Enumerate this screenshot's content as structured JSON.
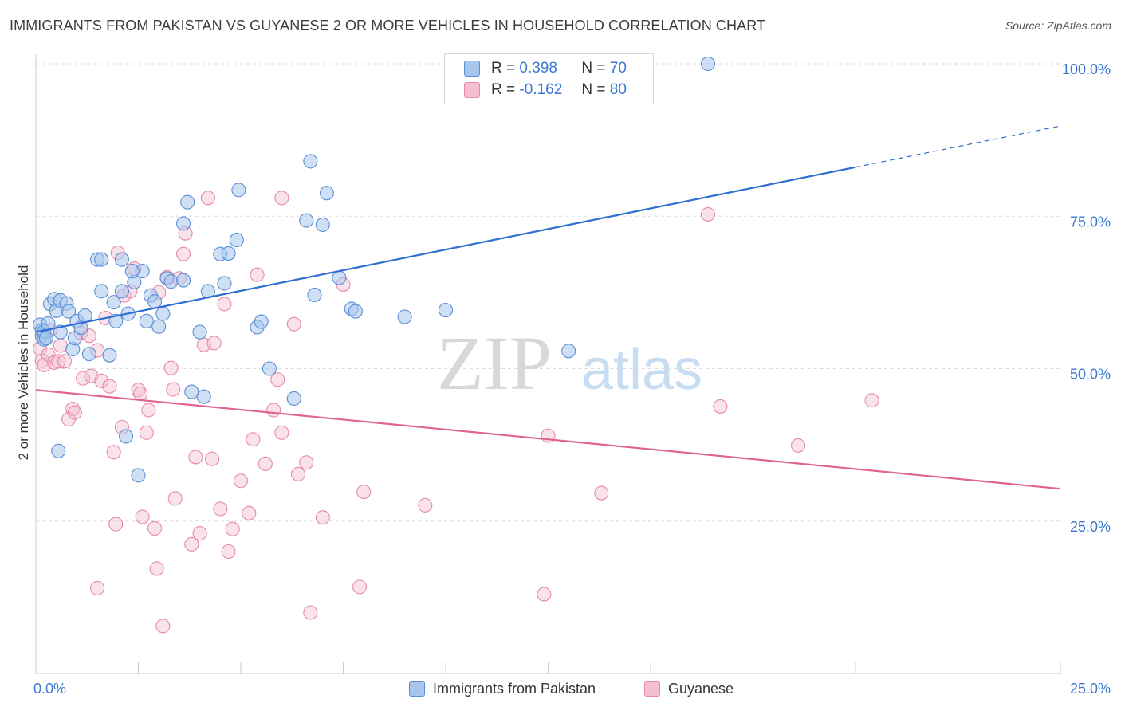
{
  "title": "IMMIGRANTS FROM PAKISTAN VS GUYANESE 2 OR MORE VEHICLES IN HOUSEHOLD CORRELATION CHART",
  "source": "Source: ZipAtlas.com",
  "watermark": {
    "zip": "ZIP",
    "atlas": "atlas"
  },
  "colors": {
    "blue_fill": "#a8c6ec",
    "blue_stroke": "#5b8fd6",
    "blue_line": "#2e6fd0",
    "pink_fill": "#f5bfd0",
    "pink_stroke": "#e58aaa",
    "pink_line": "#e0648f",
    "axis_text": "#3b78d4",
    "grid": "#dddddd"
  },
  "legend": {
    "rows": [
      {
        "r_label": "R =",
        "r_value": "0.398",
        "n_label": "N =",
        "n_value": "70"
      },
      {
        "r_label": "R =",
        "r_value": "-0.162",
        "n_label": "N =",
        "n_value": "80"
      }
    ]
  },
  "bottom_legend": [
    "Immigrants from Pakistan",
    "Guyanese"
  ],
  "chart_data": {
    "type": "scatter",
    "title": "IMMIGRANTS FROM PAKISTAN VS GUYANESE 2 OR MORE VEHICLES IN HOUSEHOLD CORRELATION CHART",
    "xlabel": "",
    "ylabel": "2 or more Vehicles in Household",
    "xlim": [
      0,
      25
    ],
    "ylim": [
      0,
      100
    ],
    "x_tick_labels": [
      {
        "value": 0,
        "label": "0.0%"
      },
      {
        "value": 25,
        "label": "25.0%"
      }
    ],
    "y_tick_labels": [
      {
        "value": 25,
        "label": "25.0%"
      },
      {
        "value": 50,
        "label": "50.0%"
      },
      {
        "value": 75,
        "label": "75.0%"
      },
      {
        "value": 100,
        "label": "100.0%"
      }
    ],
    "grid": "horizontal dashed",
    "legend_position": "top-center",
    "series": [
      {
        "name": "Immigrants from Pakistan",
        "color": "#5b8fd6",
        "trend": {
          "x0": 0,
          "y0": 56.0,
          "x1": 25,
          "y1": 89.8,
          "solid_until_x": 20
        },
        "points": [
          [
            0.1,
            57.2
          ],
          [
            0.15,
            56.3
          ],
          [
            0.15,
            55.4
          ],
          [
            0.2,
            54.8
          ],
          [
            0.2,
            56.1
          ],
          [
            0.25,
            55.0
          ],
          [
            0.3,
            57.4
          ],
          [
            0.35,
            60.6
          ],
          [
            0.45,
            61.4
          ],
          [
            0.5,
            59.5
          ],
          [
            0.6,
            61.2
          ],
          [
            0.6,
            56.0
          ],
          [
            0.75,
            60.7
          ],
          [
            0.8,
            59.4
          ],
          [
            0.9,
            53.2
          ],
          [
            0.95,
            55.0
          ],
          [
            1.0,
            57.8
          ],
          [
            1.1,
            56.7
          ],
          [
            1.2,
            58.7
          ],
          [
            1.3,
            52.4
          ],
          [
            1.5,
            67.9
          ],
          [
            1.6,
            67.9
          ],
          [
            1.6,
            62.7
          ],
          [
            1.8,
            52.2
          ],
          [
            1.9,
            60.9
          ],
          [
            1.95,
            57.8
          ],
          [
            2.1,
            67.9
          ],
          [
            2.1,
            62.7
          ],
          [
            2.2,
            38.9
          ],
          [
            2.25,
            59.0
          ],
          [
            2.4,
            64.2
          ],
          [
            2.5,
            32.5
          ],
          [
            2.6,
            66.0
          ],
          [
            2.7,
            57.8
          ],
          [
            2.8,
            62.0
          ],
          [
            2.9,
            61.0
          ],
          [
            3.0,
            56.9
          ],
          [
            3.1,
            59.0
          ],
          [
            3.2,
            64.8
          ],
          [
            3.3,
            64.3
          ],
          [
            3.6,
            64.5
          ],
          [
            3.6,
            73.8
          ],
          [
            3.7,
            77.3
          ],
          [
            3.8,
            46.2
          ],
          [
            4.1,
            45.4
          ],
          [
            4.2,
            62.7
          ],
          [
            4.5,
            68.8
          ],
          [
            4.6,
            64.0
          ],
          [
            4.7,
            68.9
          ],
          [
            4.9,
            71.1
          ],
          [
            4.95,
            79.3
          ],
          [
            5.4,
            56.8
          ],
          [
            5.5,
            57.7
          ],
          [
            5.7,
            50.0
          ],
          [
            6.3,
            45.1
          ],
          [
            6.6,
            74.3
          ],
          [
            6.7,
            84.0
          ],
          [
            6.8,
            62.1
          ],
          [
            7.0,
            73.6
          ],
          [
            7.1,
            78.8
          ],
          [
            7.4,
            64.9
          ],
          [
            7.7,
            59.8
          ],
          [
            7.8,
            59.4
          ],
          [
            9.0,
            58.5
          ],
          [
            10.0,
            59.6
          ],
          [
            13.0,
            52.9
          ],
          [
            16.4,
            100.0
          ],
          [
            0.55,
            36.5
          ],
          [
            4.0,
            56.0
          ],
          [
            2.35,
            66.0
          ]
        ]
      },
      {
        "name": "Guyanese",
        "color": "#e58aaa",
        "trend": {
          "x0": 0,
          "y0": 46.5,
          "x1": 25,
          "y1": 30.3
        },
        "points": [
          [
            0.1,
            53.3
          ],
          [
            0.15,
            51.3
          ],
          [
            0.2,
            50.6
          ],
          [
            0.3,
            52.3
          ],
          [
            0.35,
            56.3
          ],
          [
            0.45,
            51.0
          ],
          [
            0.55,
            51.2
          ],
          [
            0.6,
            53.8
          ],
          [
            0.7,
            51.2
          ],
          [
            0.8,
            41.7
          ],
          [
            0.9,
            43.4
          ],
          [
            0.95,
            42.8
          ],
          [
            1.1,
            55.9
          ],
          [
            1.15,
            48.4
          ],
          [
            1.3,
            55.4
          ],
          [
            1.35,
            48.8
          ],
          [
            1.5,
            53.0
          ],
          [
            1.6,
            48.0
          ],
          [
            1.7,
            58.3
          ],
          [
            1.8,
            47.1
          ],
          [
            1.9,
            36.3
          ],
          [
            1.95,
            24.5
          ],
          [
            2.0,
            69.0
          ],
          [
            2.1,
            40.4
          ],
          [
            2.15,
            62.0
          ],
          [
            2.3,
            62.7
          ],
          [
            2.4,
            66.4
          ],
          [
            2.5,
            46.5
          ],
          [
            2.55,
            45.9
          ],
          [
            2.6,
            25.7
          ],
          [
            2.7,
            39.5
          ],
          [
            2.75,
            43.2
          ],
          [
            2.9,
            23.8
          ],
          [
            2.95,
            17.2
          ],
          [
            3.0,
            62.5
          ],
          [
            3.1,
            7.8
          ],
          [
            3.2,
            65.0
          ],
          [
            3.3,
            50.1
          ],
          [
            3.35,
            46.6
          ],
          [
            3.4,
            28.7
          ],
          [
            3.5,
            64.8
          ],
          [
            3.6,
            68.8
          ],
          [
            3.65,
            72.2
          ],
          [
            3.8,
            21.2
          ],
          [
            3.9,
            35.5
          ],
          [
            4.0,
            23.0
          ],
          [
            4.1,
            53.9
          ],
          [
            4.2,
            78.0
          ],
          [
            4.3,
            35.2
          ],
          [
            4.35,
            54.2
          ],
          [
            4.5,
            27.0
          ],
          [
            4.6,
            60.6
          ],
          [
            4.7,
            20.0
          ],
          [
            4.8,
            23.7
          ],
          [
            5.0,
            31.6
          ],
          [
            5.2,
            26.3
          ],
          [
            5.3,
            38.4
          ],
          [
            5.4,
            65.4
          ],
          [
            5.6,
            34.4
          ],
          [
            5.8,
            43.2
          ],
          [
            5.9,
            48.2
          ],
          [
            6.0,
            78.0
          ],
          [
            6.0,
            39.5
          ],
          [
            6.3,
            57.3
          ],
          [
            6.4,
            32.7
          ],
          [
            6.6,
            34.6
          ],
          [
            6.7,
            10.0
          ],
          [
            7.0,
            25.6
          ],
          [
            7.5,
            63.8
          ],
          [
            7.9,
            14.2
          ],
          [
            8.0,
            29.8
          ],
          [
            9.5,
            27.6
          ],
          [
            12.4,
            13.0
          ],
          [
            12.5,
            39.0
          ],
          [
            13.8,
            29.6
          ],
          [
            16.4,
            75.3
          ],
          [
            16.7,
            43.8
          ],
          [
            18.6,
            37.4
          ],
          [
            20.4,
            44.8
          ],
          [
            1.5,
            14.0
          ]
        ]
      }
    ]
  }
}
